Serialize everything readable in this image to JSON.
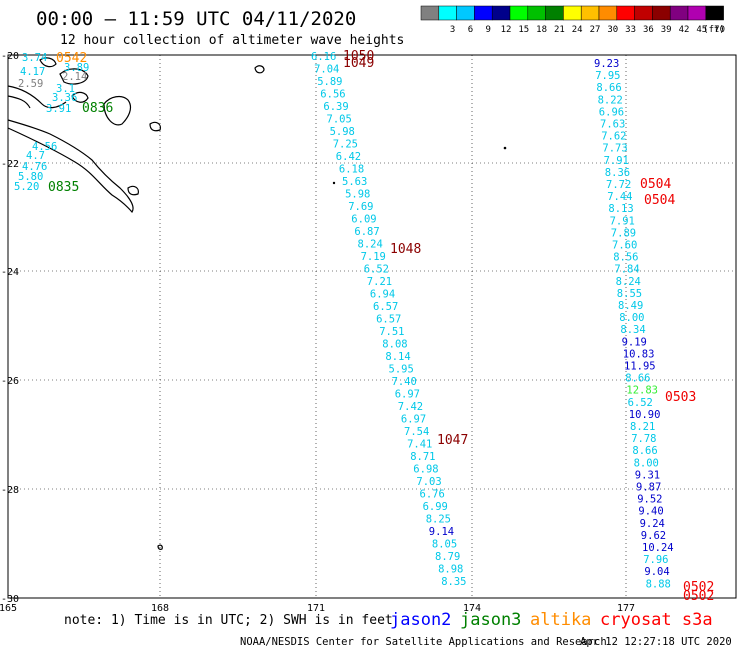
{
  "header": {
    "title": "00:00 – 11:59 UTC 04/11/2020",
    "subtitle": "12 hour collection of altimeter wave heights"
  },
  "legend": {
    "unit_label": "(ft)",
    "bins": [
      {
        "label": "",
        "color": "#808080"
      },
      {
        "label": "3",
        "color": "#00ffff"
      },
      {
        "label": "6",
        "color": "#00c8ff"
      },
      {
        "label": "9",
        "color": "#0000ff"
      },
      {
        "label": "12",
        "color": "#00008b"
      },
      {
        "label": "15",
        "color": "#00ff00"
      },
      {
        "label": "18",
        "color": "#00c000"
      },
      {
        "label": "21",
        "color": "#008000"
      },
      {
        "label": "24",
        "color": "#ffff00"
      },
      {
        "label": "27",
        "color": "#ffc000"
      },
      {
        "label": "30",
        "color": "#ff8c00"
      },
      {
        "label": "33",
        "color": "#ff0000"
      },
      {
        "label": "36",
        "color": "#c00000"
      },
      {
        "label": "39",
        "color": "#8b0000"
      },
      {
        "label": "42",
        "color": "#800080"
      },
      {
        "label": "45",
        "color": "#b000b0"
      },
      {
        "label": "70",
        "color": "#000000"
      }
    ]
  },
  "map": {
    "lon_ticks": [
      "165",
      "168",
      "171",
      "174",
      "177"
    ],
    "lat_ticks": [
      "-20",
      "-22",
      "-24",
      "-26",
      "-28",
      "-30"
    ],
    "lon_range": [
      165,
      179
    ],
    "lat_range": [
      -30,
      -20
    ]
  },
  "chart_data": {
    "type": "scatter",
    "description_unit": "significant wave height (ft)",
    "tracks": [
      {
        "satellite": "cryosat",
        "pass_times": [
          "1050",
          "1049",
          "1048",
          "1047"
        ],
        "values": [
          "6.16",
          "7.04",
          "5.89",
          "6.56",
          "6.39",
          "7.05",
          "5.98",
          "7.25",
          "6.42",
          "6.18",
          "5.63",
          "5.98",
          "7.69",
          "6.09",
          "6.87",
          "8.24",
          "7.19",
          "6.52",
          "7.21",
          "6.94",
          "6.57",
          "6.57",
          "7.51",
          "8.08",
          "8.14",
          "5.95",
          "7.40",
          "6.97",
          "7.42",
          "6.97",
          "7.54",
          "7.41",
          "8.71",
          "6.98",
          "7.03",
          "6.76",
          "6.99",
          "8.25",
          "9.14",
          "8.05",
          "8.79",
          "8.98",
          "8.35"
        ]
      },
      {
        "satellite": "cryosat",
        "pass_times": [
          "0504",
          "0504",
          "0503",
          "0502",
          "0502"
        ],
        "values": [
          "9.23",
          "7.95",
          "8.66",
          "8.22",
          "6.96",
          "7.63",
          "7.62",
          "7.73",
          "7.91",
          "8.36",
          "7.72",
          "7.44",
          "8.13",
          "7.91",
          "7.89",
          "7.60",
          "8.56",
          "7.84",
          "8.24",
          "8.55",
          "8.49",
          "8.00",
          "8.34",
          "9.19",
          "10.83",
          "11.95",
          "8.66",
          "12.83",
          "6.52",
          "10.90",
          "8.21",
          "7.78",
          "8.66",
          "8.00",
          "9.31",
          "9.87",
          "9.52",
          "9.40",
          "9.24",
          "9.62",
          "10.24",
          "7.96",
          "9.04",
          "8.88"
        ]
      },
      {
        "satellite": "jason3",
        "pass_times": [
          "0836",
          "0835"
        ],
        "values": [
          "3.74",
          "3.89",
          "4.17",
          "2.14",
          "2.59",
          "3.1",
          "3.36",
          "3.91"
        ]
      },
      {
        "satellite": "jason3",
        "pass_times": [],
        "values": [
          "4.56",
          "4.7",
          "4.76",
          "5.80",
          "5.20"
        ]
      },
      {
        "satellite": "altika",
        "pass_times": [
          "0542"
        ],
        "values": []
      }
    ]
  },
  "footer": {
    "note": "note: 1) Time is in UTC; 2) SWH is in feet",
    "sats": [
      {
        "name": "jason2",
        "color": "#0000ff"
      },
      {
        "name": "jason3",
        "color": "#008000"
      },
      {
        "name": "altika",
        "color": "#ff8c00"
      },
      {
        "name": "cryosat s3a",
        "color": "#ff0000"
      }
    ],
    "credit": "NOAA/NESDIS Center for Satellite Applications and Research",
    "timestamp": "Apr 12 12:27:18 UTC 2020"
  }
}
